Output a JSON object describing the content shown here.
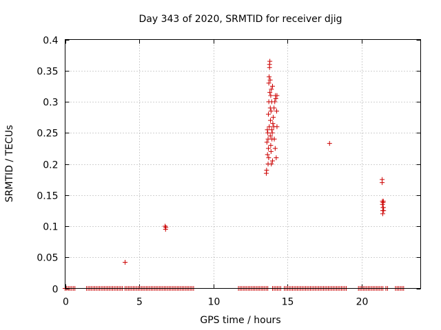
{
  "chart_data": {
    "type": "scatter",
    "title": "Day 343 of 2020, SRMTID for receiver djig",
    "xlabel": "GPS time / hours",
    "ylabel": "SRMTID / TECUs",
    "xlim": [
      0,
      24
    ],
    "ylim": [
      0,
      0.4
    ],
    "xticks": [
      0,
      5,
      10,
      15,
      20
    ],
    "yticks": [
      0,
      0.05,
      0.1,
      0.15,
      0.2,
      0.25,
      0.3,
      0.35,
      0.4
    ],
    "xtick_labels": [
      "0",
      "5",
      "10",
      "15",
      "20"
    ],
    "ytick_labels": [
      "0",
      "0.05",
      "0.1",
      "0.15",
      "0.2",
      "0.25",
      "0.3",
      "0.35",
      "0.4"
    ],
    "grid": true,
    "legend": "none",
    "marker": "plus",
    "color": "#cc0000",
    "zero_segments": [
      [
        0.0,
        0.75
      ],
      [
        1.45,
        3.9
      ],
      [
        4.05,
        8.75
      ],
      [
        11.7,
        13.75
      ],
      [
        14.0,
        14.65
      ],
      [
        14.8,
        19.0
      ],
      [
        19.8,
        21.5
      ],
      [
        21.65,
        21.8
      ],
      [
        22.3,
        22.9
      ]
    ],
    "series": [
      {
        "x": [
          4.05,
          6.75,
          6.78,
          6.8,
          13.58,
          13.6,
          13.62,
          13.65,
          13.66,
          13.68,
          13.7,
          13.7,
          13.72,
          13.72,
          13.74,
          13.75,
          13.75,
          13.77,
          13.78,
          13.8,
          13.8,
          13.82,
          13.82,
          13.84,
          13.85,
          13.85,
          13.86,
          13.88,
          13.88,
          13.9,
          13.9,
          13.92,
          13.92,
          13.94,
          13.95,
          13.96,
          13.98,
          14.0,
          14.0,
          14.02,
          14.05,
          14.08,
          14.1,
          14.12,
          14.15,
          14.18,
          14.2,
          14.22,
          14.25,
          14.28,
          14.3,
          14.3,
          17.85,
          21.4,
          21.4,
          21.42,
          21.42,
          21.44,
          21.44,
          21.46,
          21.46,
          21.48,
          21.48,
          21.5
        ],
        "y": [
          0.042,
          0.1,
          0.095,
          0.098,
          0.185,
          0.19,
          0.235,
          0.255,
          0.215,
          0.25,
          0.2,
          0.24,
          0.28,
          0.225,
          0.21,
          0.33,
          0.3,
          0.34,
          0.26,
          0.36,
          0.355,
          0.365,
          0.315,
          0.335,
          0.29,
          0.245,
          0.27,
          0.31,
          0.23,
          0.285,
          0.22,
          0.32,
          0.2,
          0.3,
          0.255,
          0.24,
          0.25,
          0.325,
          0.205,
          0.265,
          0.275,
          0.26,
          0.29,
          0.24,
          0.3,
          0.225,
          0.31,
          0.305,
          0.21,
          0.285,
          0.26,
          0.31,
          0.233,
          0.175,
          0.17,
          0.14,
          0.135,
          0.125,
          0.12,
          0.13,
          0.138,
          0.14,
          0.13,
          0.125
        ]
      }
    ]
  }
}
